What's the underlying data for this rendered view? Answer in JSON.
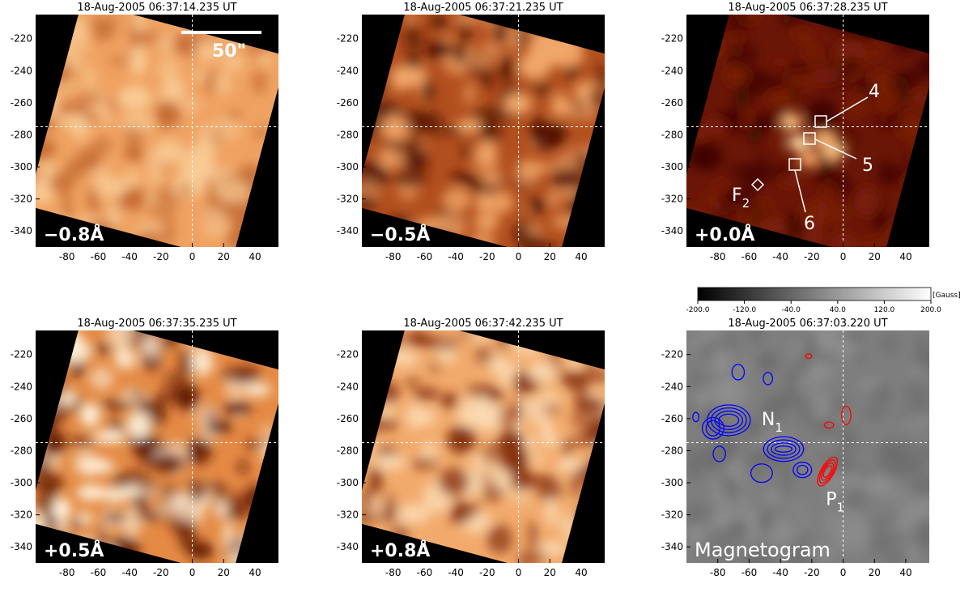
{
  "axes": {
    "xlim": [
      -100,
      55
    ],
    "ylim": [
      -350,
      -205
    ],
    "xticks": [
      -80,
      -60,
      -40,
      -20,
      0,
      20,
      40
    ],
    "yticks": [
      -220,
      -240,
      -260,
      -280,
      -300,
      -320,
      -340
    ],
    "crosshair": {
      "x": 0,
      "y": -275
    }
  },
  "panels": [
    {
      "title": "18-Aug-2005 06:37:14.235 UT",
      "label": "−0.8Å"
    },
    {
      "title": "18-Aug-2005 06:37:21.235 UT",
      "label": "−0.5Å"
    },
    {
      "title": "18-Aug-2005 06:37:28.235 UT",
      "label": "+0.0Å"
    },
    {
      "title": "18-Aug-2005 06:37:35.235 UT",
      "label": "+0.5Å"
    },
    {
      "title": "18-Aug-2005 06:37:42.235 UT",
      "label": "+0.8Å"
    },
    {
      "title": "18-Aug-2005 06:37:03.220 UT",
      "label": "Magnetogram"
    }
  ],
  "annotations": {
    "scale_bar": "50\"",
    "points": [
      "4",
      "5",
      "6"
    ],
    "f2": {
      "text": "F",
      "sub": "2"
    },
    "n1": {
      "text": "N",
      "sub": "1"
    },
    "p1": {
      "text": "P",
      "sub": "1"
    }
  },
  "colorbar": {
    "lim": [
      -200,
      200
    ],
    "unit": "[Gauss]",
    "ticks": [
      {
        "value": -200,
        "label": "-200.0"
      },
      {
        "value": -120,
        "label": "-120.0"
      },
      {
        "value": -40,
        "label": "-40.0"
      },
      {
        "value": 40,
        "label": "40.0"
      },
      {
        "value": 120,
        "label": "120.0"
      },
      {
        "value": 200,
        "label": "200.0"
      }
    ]
  }
}
